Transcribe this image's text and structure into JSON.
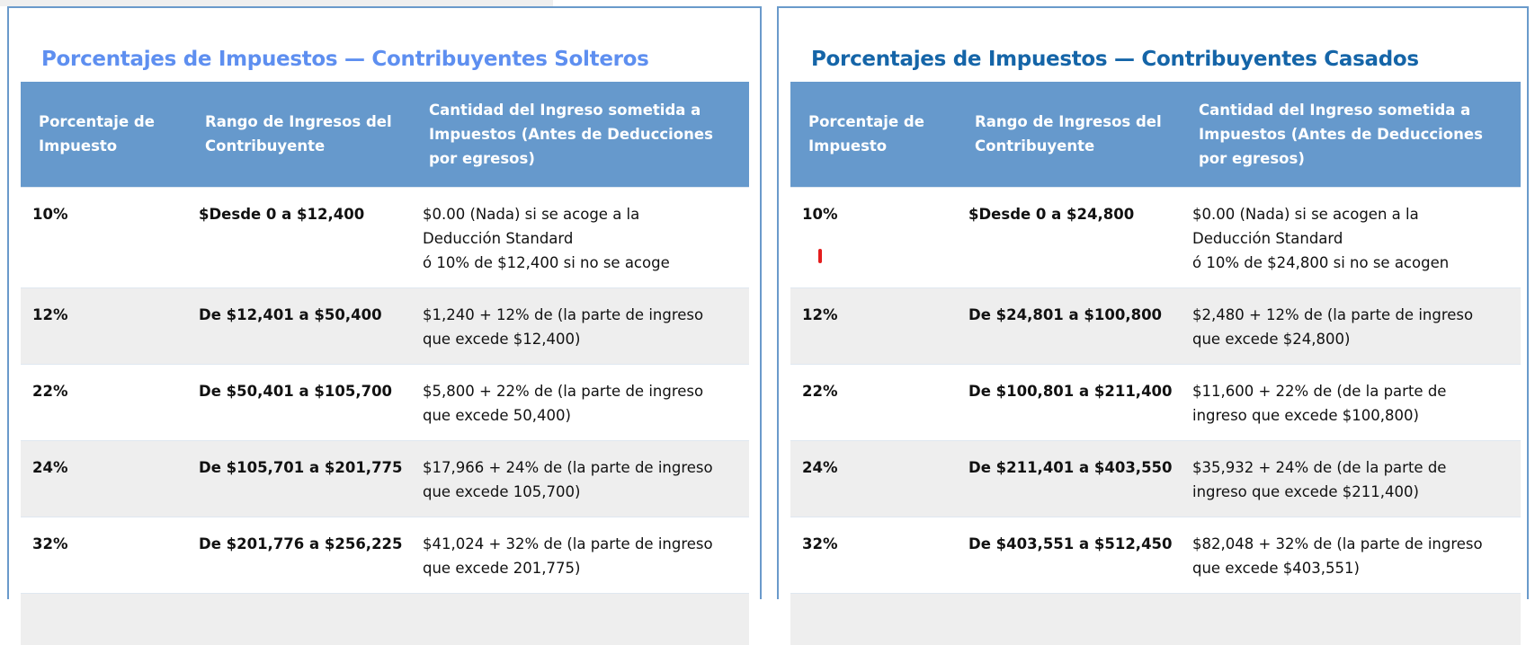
{
  "headers": {
    "rate": "Porcentaje de Impuesto",
    "range": "Rango de Ingresos del Contribuyente",
    "amount": "Cantidad del Ingreso sometida a Impuestos (Antes de Deducciones por egresos)"
  },
  "single": {
    "title": "Porcentajes de Impuestos — Contribuyentes Solteros",
    "rows": [
      {
        "rate": "10%",
        "range": "$Desde 0 a $12,400",
        "amount": [
          "$0.00 (Nada) si se acoge a la",
          "Deducción Standard",
          "ó 10% de $12,400 si no se acoge"
        ]
      },
      {
        "rate": "12%",
        "range": "De $12,401 a $50,400",
        "amount": [
          "$1,240 + 12% de (la parte de ingreso",
          "que excede $12,400)"
        ]
      },
      {
        "rate": "22%",
        "range": "De $50,401 a $105,700",
        "amount": [
          "$5,800 + 22% de (la parte de ingreso",
          "que excede 50,400)"
        ]
      },
      {
        "rate": "24%",
        "range": "De $105,701 a $201,775",
        "amount": [
          "$17,966 + 24% de (la parte de ingreso",
          "que excede 105,700)"
        ]
      },
      {
        "rate": "32%",
        "range": "De $201,776 a $256,225",
        "amount": [
          "$41,024 + 32% de (la parte de ingreso",
          "que excede 201,775)"
        ]
      }
    ]
  },
  "married": {
    "title": "Porcentajes de Impuestos — Contribuyentes Casados",
    "rows": [
      {
        "rate": "10%",
        "range": "$Desde 0 a $24,800",
        "amount": [
          "$0.00 (Nada) si se acogen a la",
          "Deducción Standard",
          "ó 10% de $24,800 si no se acogen"
        ]
      },
      {
        "rate": "12%",
        "range": "De $24,801 a $100,800",
        "amount": [
          "$2,480 + 12% de (la parte de ingreso",
          "que excede $24,800)"
        ]
      },
      {
        "rate": "22%",
        "range": "De $100,801 a $211,400",
        "amount": [
          "$11,600 + 22% de (de la parte de",
          "ingreso que excede $100,800)"
        ]
      },
      {
        "rate": "24%",
        "range": "De $211,401 a $403,550",
        "amount": [
          "$35,932 + 24% de (de la parte de",
          "ingreso que excede $211,400)"
        ]
      },
      {
        "rate": "32%",
        "range": "De $403,551 a $512,450",
        "amount": [
          "$82,048 + 32% de (la parte de ingreso",
          "que excede $403,551)"
        ]
      }
    ]
  }
}
